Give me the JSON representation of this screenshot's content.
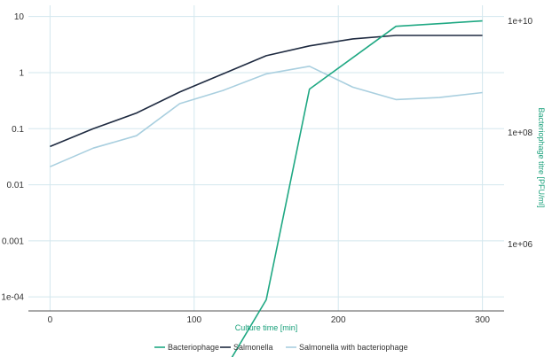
{
  "chart_data": {
    "type": "line",
    "title": "",
    "xlabel": "Culture time [min]",
    "ylabel": "",
    "y2label": "Bacteriophage titre [PFU/ml]",
    "xlim": [
      -15,
      315
    ],
    "ylim_log10": [
      -4.25,
      1.2
    ],
    "y2lim_log10": [
      4.8,
      10.28
    ],
    "x_ticks": [
      "0",
      "100",
      "200",
      "300"
    ],
    "y_ticks": [
      "10",
      "1",
      "0.1",
      "0.01",
      "0.001",
      "1e-04"
    ],
    "y2_ticks": [
      "1e+10",
      "1e+08",
      "1e+06"
    ],
    "grid": true,
    "legend_position": "bottom",
    "series": [
      {
        "name": "Bacteriophage",
        "axis": "right",
        "color": "#1fa883",
        "x": [
          120,
          150,
          180,
          240,
          300
        ],
        "y": [
          5000,
          100000,
          600000000,
          8000000000,
          10000000000
        ]
      },
      {
        "name": "Salmonella",
        "axis": "left",
        "color": "#1e2a40",
        "x": [
          0,
          30,
          60,
          90,
          120,
          150,
          180,
          210,
          240,
          270,
          300
        ],
        "y": [
          0.048,
          0.1,
          0.19,
          0.45,
          0.95,
          2.0,
          3.0,
          4.0,
          4.6,
          4.6,
          4.6
        ]
      },
      {
        "name": "Salmonella with bacteriophage",
        "axis": "left",
        "color": "#a9cfdf",
        "x": [
          0,
          30,
          60,
          90,
          120,
          150,
          180,
          210,
          240,
          270,
          300
        ],
        "y": [
          0.021,
          0.045,
          0.075,
          0.28,
          0.48,
          0.95,
          1.3,
          0.55,
          0.33,
          0.36,
          0.44
        ]
      }
    ]
  }
}
